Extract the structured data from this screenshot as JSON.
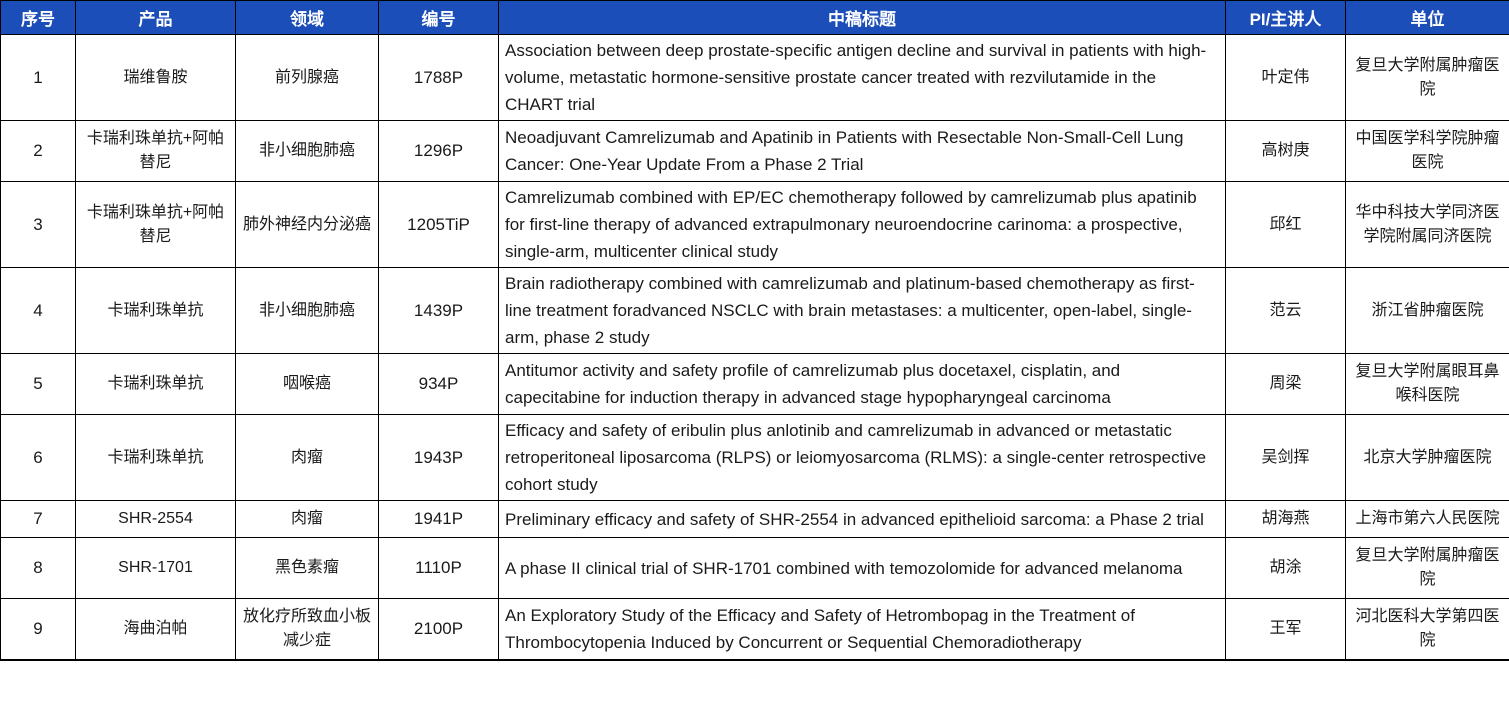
{
  "colors": {
    "header_bg": "#1b4eb8",
    "header_text": "#ffffff",
    "border": "#000000"
  },
  "table": {
    "columns": [
      {
        "key": "index",
        "label": "序号"
      },
      {
        "key": "product",
        "label": "产品"
      },
      {
        "key": "field",
        "label": "领域"
      },
      {
        "key": "code",
        "label": "编号"
      },
      {
        "key": "title",
        "label": "中稿标题"
      },
      {
        "key": "pi",
        "label": "PI/主讲人"
      },
      {
        "key": "org",
        "label": "单位"
      }
    ],
    "rows": [
      {
        "index": "1",
        "product": "瑞维鲁胺",
        "field": "前列腺癌",
        "code": "1788P",
        "title": "Association between deep prostate-specific antigen decline and survival in patients with high-volume, metastatic hormone-sensitive prostate cancer treated with rezvilutamide in the CHART trial",
        "pi": "叶定伟",
        "org": "复旦大学附属肿瘤医院"
      },
      {
        "index": "2",
        "product": "卡瑞利珠单抗+阿帕替尼",
        "field": "非小细胞肺癌",
        "code": "1296P",
        "title": "Neoadjuvant Camrelizumab and Apatinib in Patients with Resectable Non-Small-Cell Lung Cancer: One-Year Update From a Phase 2 Trial",
        "pi": "高树庚",
        "org": "中国医学科学院肿瘤医院"
      },
      {
        "index": "3",
        "product": "卡瑞利珠单抗+阿帕替尼",
        "field": "肺外神经内分泌癌",
        "code": "1205TiP",
        "title": "Camrelizumab combined with EP/EC chemotherapy followed by camrelizumab plus apatinib for first-line therapy of advanced extrapulmonary neuroendocrine carinoma: a prospective, single-arm, multicenter clinical study",
        "pi": "邱红",
        "org": "华中科技大学同济医学院附属同济医院"
      },
      {
        "index": "4",
        "product": "卡瑞利珠单抗",
        "field": "非小细胞肺癌",
        "code": "1439P",
        "title": "Brain radiotherapy combined with camrelizumab and platinum-based chemotherapy as first-line treatment foradvanced NSCLC with brain metastases: a multicenter, open-label, single-arm, phase 2 study",
        "pi": "范云",
        "org": "浙江省肿瘤医院"
      },
      {
        "index": "5",
        "product": "卡瑞利珠单抗",
        "field": "咽喉癌",
        "code": "934P",
        "title": "Antitumor activity and safety profile of camrelizumab plus docetaxel, cisplatin, and capecitabine for induction therapy in advanced stage hypopharyngeal carcinoma",
        "pi": "周梁",
        "org": "复旦大学附属眼耳鼻喉科医院"
      },
      {
        "index": "6",
        "product": "卡瑞利珠单抗",
        "field": "肉瘤",
        "code": "1943P",
        "title": "Efficacy and safety of eribulin plus anlotinib and camrelizumab in advanced or metastatic retroperitoneal liposarcoma (RLPS) or leiomyosarcoma (RLMS): a single-center retrospective cohort study",
        "pi": "吴剑挥",
        "org": "北京大学肿瘤医院"
      },
      {
        "index": "7",
        "product": "SHR-2554",
        "field": "肉瘤",
        "code": "1941P",
        "title": "Preliminary efficacy and safety of SHR-2554 in advanced epithelioid sarcoma: a Phase 2 trial",
        "pi": "胡海燕",
        "org": "上海市第六人民医院"
      },
      {
        "index": "8",
        "product": "SHR-1701",
        "field": "黑色素瘤",
        "code": "1110P",
        "title": "A phase II clinical trial of SHR-1701 combined with temozolomide for advanced melanoma",
        "pi": "胡涂",
        "org": "复旦大学附属肿瘤医院"
      },
      {
        "index": "9",
        "product": "海曲泊帕",
        "field": "放化疗所致血小板减少症",
        "code": "2100P",
        "title": "An Exploratory Study of the Efficacy and Safety of Hetrombopag in the Treatment of Thrombocytopenia Induced by Concurrent or Sequential Chemoradiotherapy",
        "pi": "王军",
        "org": "河北医科大学第四医院"
      }
    ]
  }
}
